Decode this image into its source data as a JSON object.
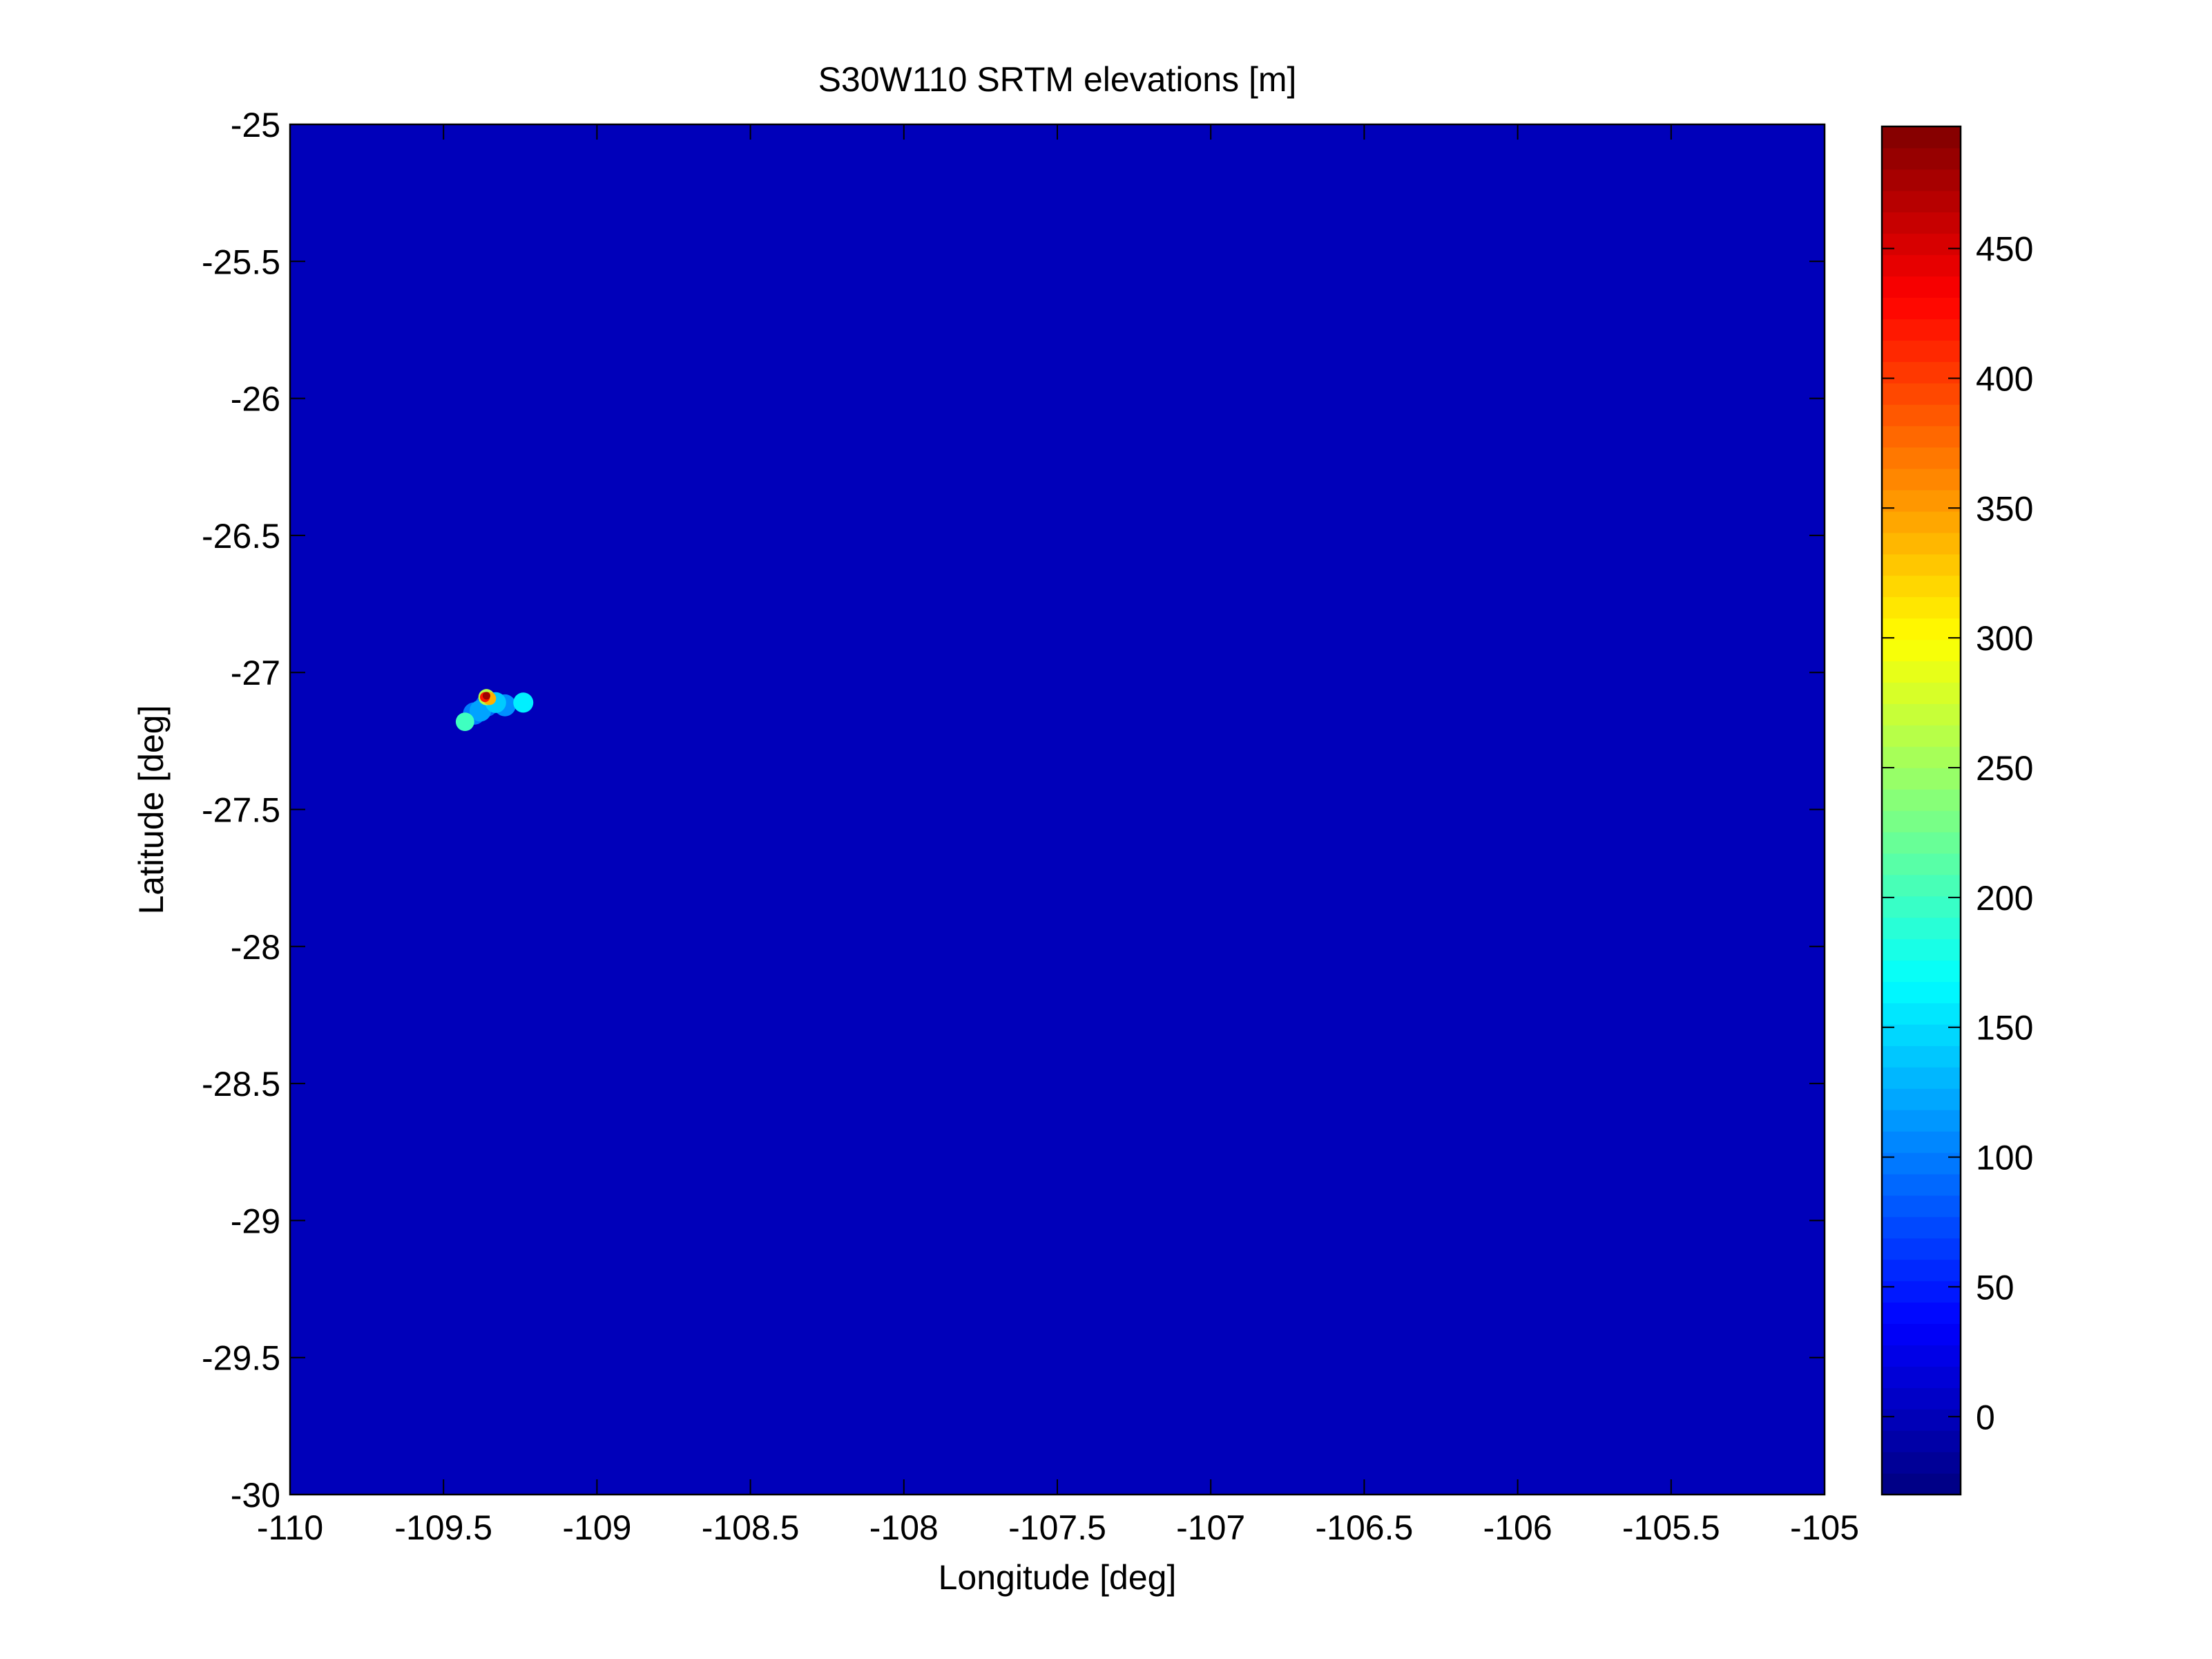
{
  "chart_data": {
    "type": "heatmap",
    "title": "S30W110 SRTM elevations [m]",
    "xlabel": "Longitude [deg]",
    "ylabel": "Latitude [deg]",
    "xlim": [
      -110,
      -105
    ],
    "ylim": [
      -30,
      -25
    ],
    "x_ticks": [
      -110,
      -109.5,
      -109,
      -108.5,
      -108,
      -107.5,
      -107,
      -106.5,
      -106,
      -105.5,
      -105
    ],
    "x_tick_labels": [
      "-110",
      "-109.5",
      "-109",
      "-108.5",
      "-108",
      "-107.5",
      "-107",
      "-106.5",
      "-106",
      "-105.5",
      "-105"
    ],
    "y_ticks": [
      -25,
      -25.5,
      -26,
      -26.5,
      -27,
      -27.5,
      -28,
      -28.5,
      -29,
      -29.5,
      -30
    ],
    "y_tick_labels": [
      "-25",
      "-25.5",
      "-26",
      "-26.5",
      "-27",
      "-27.5",
      "-28",
      "-28.5",
      "-29",
      "-29.5",
      "-30"
    ],
    "background_value": 0,
    "colorbar": {
      "colormap": "jet",
      "clim": [
        -30,
        497
      ],
      "ticks": [
        0,
        50,
        100,
        150,
        200,
        250,
        300,
        350,
        400,
        450
      ],
      "tick_labels": [
        "0",
        "50",
        "100",
        "150",
        "200",
        "250",
        "300",
        "350",
        "400",
        "450"
      ]
    },
    "features": [
      {
        "lon": -109.36,
        "lat": -27.12,
        "elevation": 90
      },
      {
        "lon": -109.33,
        "lat": -27.11,
        "elevation": 140
      },
      {
        "lon": -109.38,
        "lat": -27.14,
        "elevation": 120
      },
      {
        "lon": -109.36,
        "lat": -27.09,
        "elevation": 260
      },
      {
        "lon": -109.35,
        "lat": -27.095,
        "elevation": 340
      },
      {
        "lon": -109.365,
        "lat": -27.09,
        "elevation": 420
      },
      {
        "lon": -109.36,
        "lat": -27.085,
        "elevation": 480
      },
      {
        "lon": -109.3,
        "lat": -27.12,
        "elevation": 110
      },
      {
        "lon": -109.24,
        "lat": -27.11,
        "elevation": 160
      },
      {
        "lon": -109.43,
        "lat": -27.18,
        "elevation": 200
      },
      {
        "lon": -109.4,
        "lat": -27.15,
        "elevation": 100
      }
    ],
    "grid": false,
    "legend": "colorbar-right"
  },
  "colors": {
    "background": "#ffffff",
    "axis": "#000000",
    "ocean": "#0000bf"
  }
}
